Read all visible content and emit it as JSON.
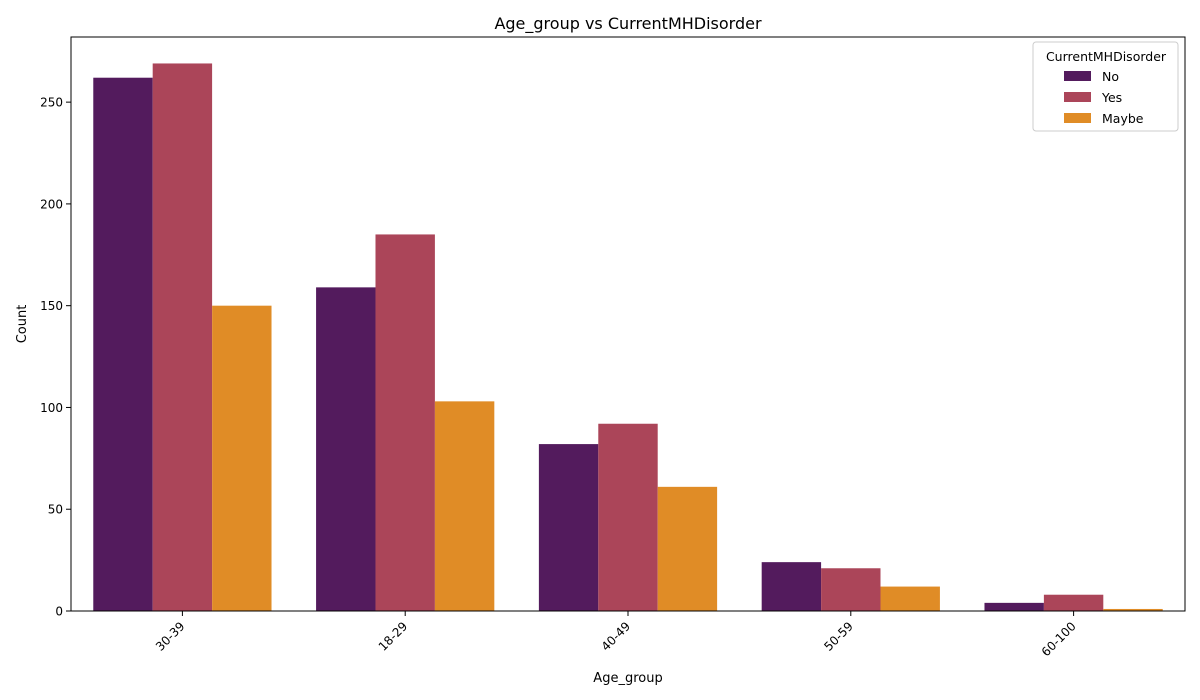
{
  "chart_data": {
    "type": "bar",
    "title": "Age_group vs CurrentMHDisorder",
    "xlabel": "Age_group",
    "ylabel": "Count",
    "categories": [
      "30-39",
      "18-29",
      "40-49",
      "50-59",
      "60-100"
    ],
    "series": [
      {
        "name": "No",
        "color": "#531b5d",
        "values": [
          262,
          159,
          82,
          24,
          4
        ]
      },
      {
        "name": "Yes",
        "color": "#ab4559",
        "values": [
          269,
          185,
          92,
          21,
          8
        ]
      },
      {
        "name": "Maybe",
        "color": "#e08c26",
        "values": [
          150,
          103,
          61,
          12,
          1
        ]
      }
    ],
    "ylim": [
      0,
      282
    ],
    "yticks": [
      0,
      50,
      100,
      150,
      200,
      250
    ],
    "grid": false,
    "legend": {
      "title": "CurrentMHDisorder",
      "placement": "top-right"
    }
  }
}
